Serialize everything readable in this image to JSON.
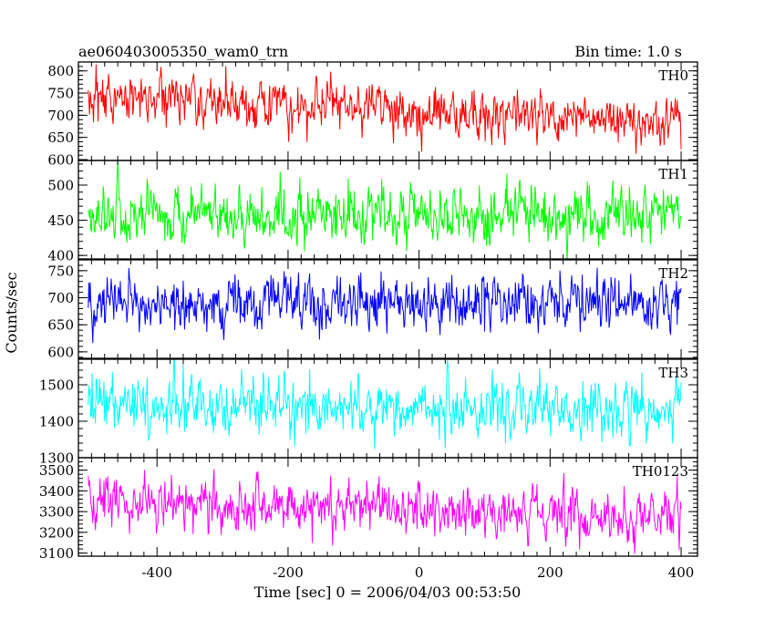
{
  "chart_data": {
    "type": "line",
    "title": "ae060403005350_wam0_trn",
    "subtitle": "Bin time: 1.0 s",
    "xlabel": "Time [sec] 0 = 2006/04/03 00:53:50",
    "ylabel": "Counts/sec",
    "xlim": [
      -520,
      425
    ],
    "x_ticks": [
      "-400",
      "-200",
      "0",
      "200",
      "400"
    ],
    "x_tick_values": [
      -400,
      -200,
      0,
      200,
      400
    ],
    "grid": false,
    "panels": [
      {
        "name": "TH0",
        "color": "#ff0000",
        "ylim": [
          598,
          820
        ],
        "y_ticks": [
          "600",
          "650",
          "700",
          "750",
          "800"
        ],
        "y_tick_values": [
          600,
          650,
          700,
          750,
          800
        ],
        "x_range": [
          -505,
          400
        ],
        "trend": [
          [
            -505,
            745
          ],
          [
            400,
            680
          ]
        ],
        "noise_sd": 28
      },
      {
        "name": "TH1",
        "color": "#00ff00",
        "ylim": [
          395,
          535
        ],
        "y_ticks": [
          "400",
          "450",
          "500"
        ],
        "y_tick_values": [
          400,
          450,
          500
        ],
        "x_range": [
          -505,
          400
        ],
        "trend": [
          [
            -505,
            458
          ],
          [
            400,
            458
          ]
        ],
        "noise_sd": 20
      },
      {
        "name": "TH2",
        "color": "#0000ff",
        "ylim": [
          588,
          770
        ],
        "y_ticks": [
          "600",
          "650",
          "700",
          "750"
        ],
        "y_tick_values": [
          600,
          650,
          700,
          750
        ],
        "x_range": [
          -505,
          400
        ],
        "trend": [
          [
            -505,
            690
          ],
          [
            400,
            690
          ]
        ],
        "noise_sd": 26
      },
      {
        "name": "TH3",
        "color": "#00ffff",
        "ylim": [
          1300,
          1570
        ],
        "y_ticks": [
          "1300",
          "1400",
          "1500"
        ],
        "y_tick_values": [
          1300,
          1400,
          1500
        ],
        "x_range": [
          -505,
          400
        ],
        "trend": [
          [
            -505,
            1445
          ],
          [
            400,
            1430
          ]
        ],
        "noise_sd": 38
      },
      {
        "name": "TH0123",
        "color": "#ff00ff",
        "ylim": [
          3085,
          3560
        ],
        "y_ticks": [
          "3100",
          "3200",
          "3300",
          "3400",
          "3500"
        ],
        "y_tick_values": [
          3100,
          3200,
          3300,
          3400,
          3500
        ],
        "x_range": [
          -505,
          400
        ],
        "trend": [
          [
            -505,
            3340
          ],
          [
            400,
            3280
          ]
        ],
        "noise_sd": 60
      }
    ]
  }
}
